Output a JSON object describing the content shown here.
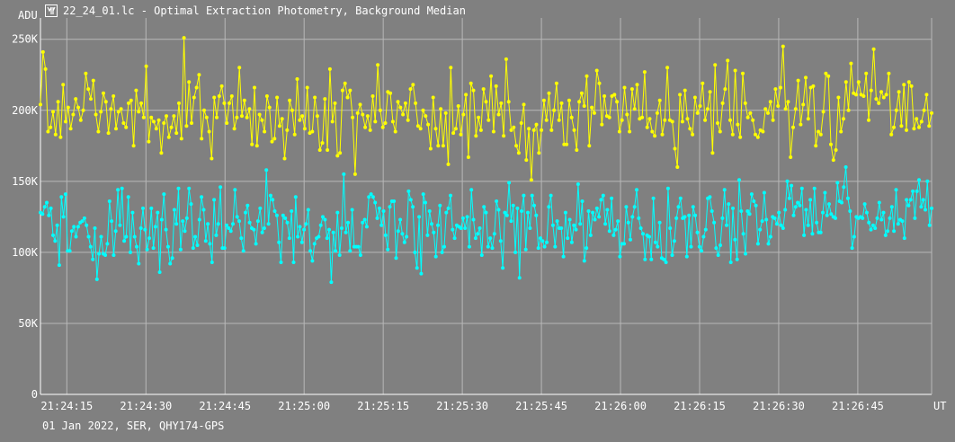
{
  "window": {
    "title": "22_24_01.lc - Optimal Extraction Photometry, Background Median",
    "icon": "lightcurve-app-icon"
  },
  "footer": {
    "text": "01 Jan 2022, SER, QHY174-GPS"
  },
  "colors": {
    "background": "#808080",
    "grid": "#b8b8b8",
    "axis": "#ffffff",
    "series_1": "#ffff00",
    "series_2": "#00ffff"
  },
  "chart_data": {
    "type": "line",
    "title": "",
    "xlabel": "UT",
    "ylabel": "ADU",
    "grid": true,
    "xlim": [
      "21:24:10",
      "21:26:59"
    ],
    "ylim": [
      0,
      250000
    ],
    "x_ticks": [
      "21:24:15",
      "21:24:30",
      "21:24:45",
      "21:25:00",
      "21:25:15",
      "21:25:30",
      "21:25:45",
      "21:26:00",
      "21:26:15",
      "21:26:30",
      "21:26:45"
    ],
    "y_ticks": [
      {
        "value": 0,
        "label": "0"
      },
      {
        "value": 50000,
        "label": "50K"
      },
      {
        "value": 100000,
        "label": "100K"
      },
      {
        "value": 150000,
        "label": "150K"
      },
      {
        "value": 200000,
        "label": "200K"
      },
      {
        "value": 250000,
        "label": "250K"
      }
    ],
    "x_start": "21:24:10",
    "x_end": "21:26:59",
    "series": [
      {
        "color": "#ffff00",
        "values": [
          204000,
          241000,
          229000,
          185000,
          188000,
          199000,
          183000,
          206000,
          181000,
          218000,
          192000,
          202000,
          187000,
          197000,
          208000,
          202000,
          193000,
          200000,
          226000,
          215000,
          208000,
          221000,
          197000,
          185000,
          199000,
          212000,
          206000,
          184000,
          201000,
          210000,
          187000,
          199000,
          201000,
          191000,
          188000,
          205000,
          207000,
          175000,
          214000,
          199000,
          205000,
          195000,
          231000,
          178000,
          195000,
          192000,
          187000,
          193000,
          170000,
          191000,
          196000,
          181000,
          188000,
          196000,
          184000,
          205000,
          180000,
          251000,
          189000,
          220000,
          191000,
          209000,
          216000,
          225000,
          180000,
          200000,
          195000,
          185000,
          166000,
          209000,
          195000,
          210000,
          217000,
          205000,
          191000,
          205000,
          210000,
          187000,
          195000,
          230000,
          196000,
          207000,
          195000,
          201000,
          176000,
          216000,
          175000,
          197000,
          193000,
          185000,
          210000,
          202000,
          178000,
          180000,
          209000,
          189000,
          194000,
          166000,
          186000,
          207000,
          200000,
          183000,
          222000,
          193000,
          196000,
          187000,
          216000,
          184000,
          185000,
          209000,
          196000,
          172000,
          177000,
          208000,
          172000,
          229000,
          192000,
          205000,
          168000,
          170000,
          214000,
          219000,
          209000,
          214000,
          195000,
          155000,
          198000,
          204000,
          197000,
          188000,
          196000,
          186000,
          210000,
          192000,
          232000,
          200000,
          188000,
          191000,
          213000,
          212000,
          192000,
          185000,
          206000,
          202000,
          197000,
          205000,
          193000,
          215000,
          218000,
          205000,
          189000,
          187000,
          200000,
          196000,
          190000,
          173000,
          209000,
          187000,
          175000,
          201000,
          175000,
          198000,
          162000,
          230000,
          184000,
          187000,
          203000,
          183000,
          197000,
          211000,
          167000,
          219000,
          214000,
          182000,
          195000,
          186000,
          215000,
          206000,
          193000,
          224000,
          185000,
          217000,
          197000,
          205000,
          182000,
          236000,
          206000,
          186000,
          188000,
          175000,
          170000,
          191000,
          204000,
          165000,
          187000,
          151000,
          186000,
          190000,
          170000,
          186000,
          207000,
          193000,
          212000,
          186000,
          200000,
          219000,
          193000,
          205000,
          176000,
          176000,
          207000,
          195000,
          186000,
          172000,
          206000,
          212000,
          203000,
          224000,
          175000,
          202000,
          198000,
          228000,
          219000,
          190000,
          210000,
          196000,
          195000,
          210000,
          211000,
          206000,
          185000,
          193000,
          216000,
          197000,
          185000,
          215000,
          201000,
          218000,
          194000,
          195000,
          227000,
          188000,
          194000,
          185000,
          182000,
          198000,
          207000,
          183000,
          193000,
          230000,
          193000,
          192000,
          173000,
          160000,
          211000,
          192000,
          214000,
          194000,
          187000,
          183000,
          209000,
          198000,
          203000,
          219000,
          193000,
          201000,
          213000,
          170000,
          232000,
          191000,
          185000,
          205000,
          215000,
          235000,
          193000,
          183000,
          228000,
          190000,
          181000,
          226000,
          205000,
          195000,
          198000,
          193000,
          183000,
          181000,
          186000,
          185000,
          201000,
          198000,
          206000,
          193000,
          215000,
          203000,
          216000,
          245000,
          201000,
          206000,
          167000,
          188000,
          201000,
          221000,
          190000,
          204000,
          223000,
          194000,
          216000,
          217000,
          175000,
          185000,
          183000,
          199000,
          226000,
          224000,
          176000,
          165000,
          172000,
          209000,
          185000,
          194000,
          220000,
          200000,
          233000,
          212000,
          211000,
          220000,
          211000,
          210000,
          226000,
          193000,
          214000,
          243000,
          208000,
          205000,
          213000,
          209000,
          211000,
          226000,
          183000,
          188000,
          200000,
          213000,
          189000,
          218000,
          186000,
          220000,
          217000,
          187000,
          194000,
          188000,
          192000,
          200000,
          211000,
          189000,
          198000
        ]
      },
      {
        "color": "#00ffff",
        "values": [
          128000,
          127000,
          132000,
          135000,
          126000,
          131000,
          112000,
          108000,
          119000,
          91000,
          139000,
          125000,
          141000,
          101000,
          101000,
          115000,
          118000,
          111000,
          118000,
          121000,
          122000,
          124000,
          119000,
          111000,
          104000,
          95000,
          117000,
          81000,
          99000,
          111000,
          99000,
          98000,
          106000,
          136000,
          122000,
          98000,
          115000,
          144000,
          119000,
          145000,
          108000,
          111000,
          139000,
          100000,
          128000,
          111000,
          104000,
          92000,
          117000,
          131000,
          116000,
          102000,
          110000,
          131000,
          103000,
          118000,
          128000,
          86000,
          123000,
          141000,
          116000,
          104000,
          92000,
          96000,
          130000,
          120000,
          145000,
          102000,
          122000,
          115000,
          124000,
          145000,
          134000,
          103000,
          111000,
          105000,
          123000,
          139000,
          130000,
          108000,
          120000,
          106000,
          93000,
          137000,
          112000,
          120000,
          146000,
          103000,
          103000,
          119000,
          117000,
          115000,
          120000,
          144000,
          125000,
          122000,
          110000,
          101000,
          128000,
          133000,
          121000,
          117000,
          116000,
          106000,
          122000,
          131000,
          114000,
          117000,
          158000,
          120000,
          140000,
          137000,
          129000,
          126000,
          107000,
          93000,
          126000,
          124000,
          121000,
          110000,
          129000,
          93000,
          139000,
          111000,
          118000,
          107000,
          116000,
          120000,
          130000,
          101000,
          94000,
          106000,
          110000,
          111000,
          119000,
          125000,
          123000,
          110000,
          116000,
          79000,
          114000,
          101000,
          128000,
          98000,
          117000,
          155000,
          114000,
          121000,
          101000,
          130000,
          104000,
          104000,
          104000,
          98000,
          121000,
          123000,
          118000,
          139000,
          141000,
          139000,
          135000,
          124000,
          131000,
          119000,
          129000,
          112000,
          102000,
          132000,
          136000,
          136000,
          96000,
          115000,
          123000,
          113000,
          107000,
          111000,
          143000,
          137000,
          132000,
          100000,
          89000,
          125000,
          85000,
          141000,
          135000,
          112000,
          129000,
          120000,
          114000,
          97000,
          119000,
          133000,
          100000,
          104000,
          128000,
          131000,
          140000,
          116000,
          110000,
          119000,
          118000,
          117000,
          124000,
          117000,
          125000,
          104000,
          144000,
          123000,
          110000,
          113000,
          117000,
          98000,
          132000,
          128000,
          104000,
          110000,
          103000,
          113000,
          136000,
          130000,
          108000,
          89000,
          128000,
          126000,
          149000,
          122000,
          133000,
          100000,
          131000,
          82000,
          129000,
          140000,
          102000,
          128000,
          117000,
          140000,
          133000,
          126000,
          103000,
          110000,
          108000,
          104000,
          107000,
          132000,
          140000,
          119000,
          104000,
          122000,
          117000,
          117000,
          97000,
          128000,
          110000,
          123000,
          107000,
          119000,
          116000,
          148000,
          120000,
          136000,
          94000,
          103000,
          129000,
          112000,
          128000,
          123000,
          131000,
          125000,
          137000,
          140000,
          120000,
          130000,
          115000,
          138000,
          112000,
          116000,
          122000,
          97000,
          106000,
          106000,
          132000,
          121000,
          109000,
          125000,
          132000,
          144000,
          124000,
          117000,
          113000,
          95000,
          112000,
          111000,
          95000,
          138000,
          107000,
          104000,
          121000,
          96000,
          95000,
          93000,
          145000,
          117000,
          98000,
          108000,
          124000,
          132000,
          138000,
          124000,
          125000,
          97000,
          126000,
          104000,
          132000,
          126000,
          114000,
          104000,
          101000,
          111000,
          116000,
          138000,
          139000,
          129000,
          121000,
          103000,
          98000,
          105000,
          124000,
          144000,
          119000,
          134000,
          93000,
          131000,
          109000,
          95000,
          151000,
          129000,
          113000,
          99000,
          129000,
          127000,
          141000,
          136000,
          133000,
          106000,
          116000,
          122000,
          142000,
          123000,
          106000,
          111000,
          125000,
          124000,
          120000,
          128000,
          119000,
          117000,
          130000,
          150000,
          138000,
          147000,
          126000,
          132000,
          135000,
          133000,
          145000,
          112000,
          130000,
          119000,
          137000,
          113000,
          145000,
          121000,
          114000,
          114000,
          128000,
          142000,
          126000,
          134000,
          127000,
          125000,
          124000,
          149000,
          136000,
          135000,
          146000,
          160000,
          138000,
          129000,
          103000,
          111000,
          125000,
          124000,
          125000,
          124000,
          134000,
          128000,
          121000,
          116000,
          119000,
          117000,
          124000,
          135000,
          123000,
          128000,
          112000,
          115000,
          124000,
          132000,
          115000,
          144000,
          120000,
          123000,
          122000,
          110000,
          137000,
          133000,
          137000,
          143000,
          124000,
          143000,
          151000,
          132000,
          137000,
          130000,
          150000,
          119000,
          131000
        ]
      }
    ]
  }
}
